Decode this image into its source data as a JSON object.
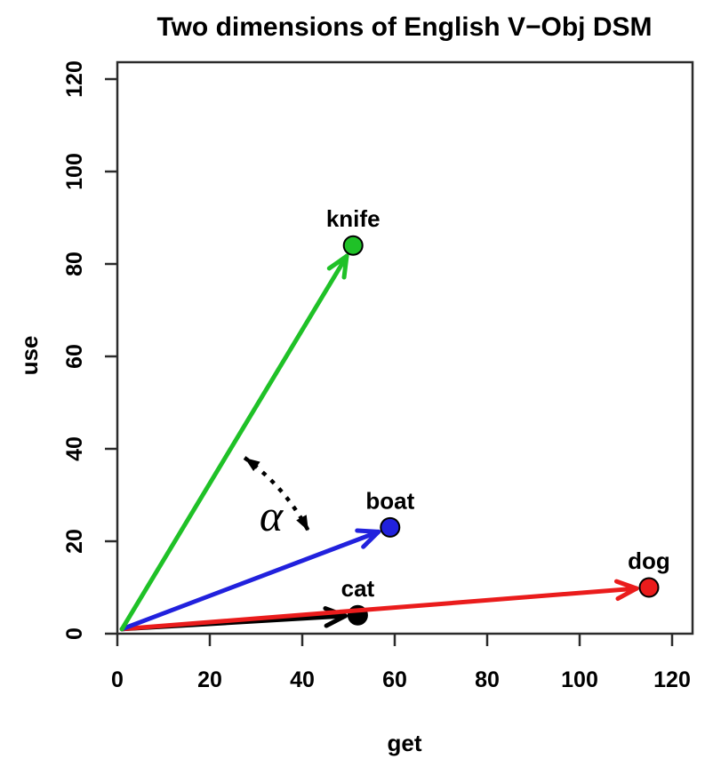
{
  "chart_data": {
    "type": "scatter",
    "representation": "vectors (arrows) from the origin to each labelled point",
    "title": "Two dimensions of English V−Obj DSM",
    "xlabel": "get",
    "ylabel": "use",
    "xlim": [
      0,
      124
    ],
    "ylim": [
      0,
      123
    ],
    "x_ticks": [
      0,
      20,
      40,
      60,
      80,
      100,
      120
    ],
    "y_ticks": [
      0,
      20,
      40,
      60,
      80,
      100,
      120
    ],
    "grid": false,
    "legend": "none",
    "vector_origin": {
      "x": 1,
      "y": 1
    },
    "points": [
      {
        "label": "cat",
        "x": 52,
        "y": 4,
        "color": "#000000"
      },
      {
        "label": "dog",
        "x": 115,
        "y": 10,
        "color": "#ea1c1c"
      },
      {
        "label": "boat",
        "x": 59,
        "y": 23,
        "color": "#2121dd"
      },
      {
        "label": "knife",
        "x": 51,
        "y": 84,
        "color": "#1fc127"
      }
    ],
    "angle_annotation": {
      "label": "α",
      "between": [
        "knife",
        "boat"
      ],
      "style": "dotted double-headed arc"
    },
    "axis_color": "#2b2b2b",
    "text_color": "#000000"
  }
}
